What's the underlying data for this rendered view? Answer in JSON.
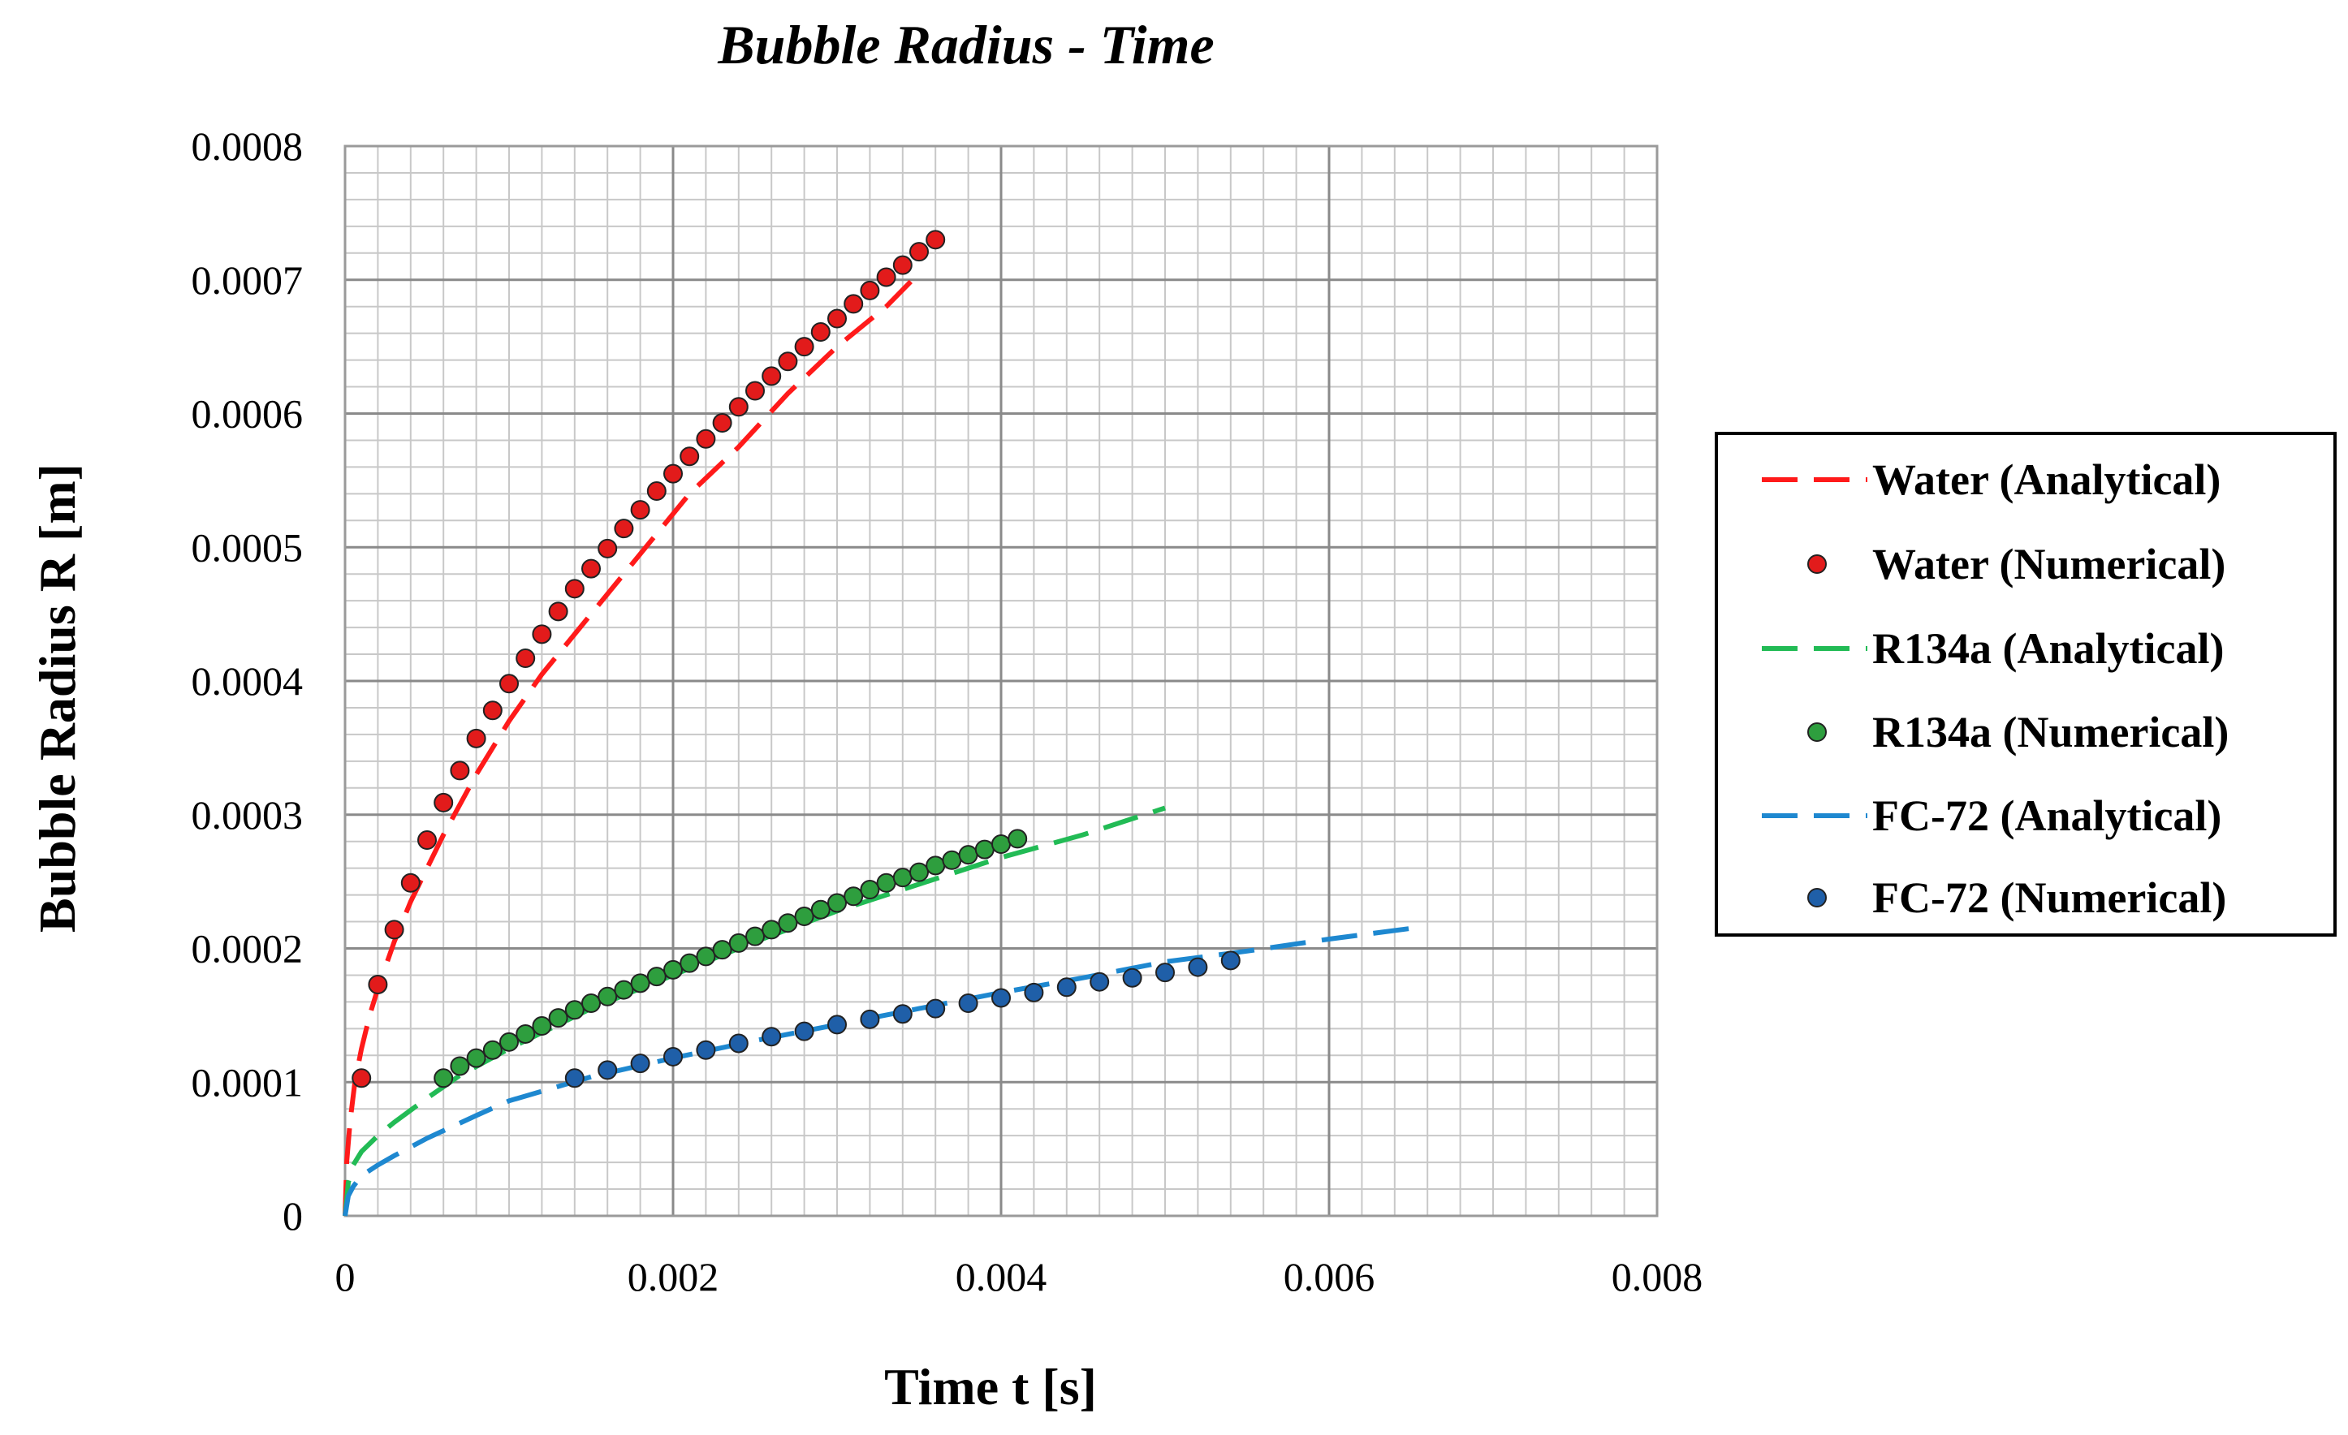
{
  "chart_data": {
    "type": "scatter",
    "title": "Bubble Radius - Time",
    "xlabel": "Time t [s]",
    "ylabel": "Bubble Radius R [m]",
    "xlim": [
      0,
      0.008
    ],
    "ylim": [
      0,
      0.0008
    ],
    "xticks": [
      "0",
      "0.002",
      "0.004",
      "0.006",
      "0.008"
    ],
    "yticks": [
      "0",
      "0.0001",
      "0.0002",
      "0.0003",
      "0.0004",
      "0.0005",
      "0.0006",
      "0.0007",
      "0.0008"
    ],
    "grid": true,
    "legend_position": "right",
    "series": [
      {
        "name": "Water (Analytical)",
        "kind": "line",
        "color": "#ff1a1a",
        "x": [
          0,
          1e-05,
          3e-05,
          6e-05,
          0.0001,
          0.00015,
          0.0002,
          0.0003,
          0.0004,
          0.0006,
          0.0008,
          0.001,
          0.0012,
          0.0015,
          0.0018,
          0.0021,
          0.0024,
          0.0027,
          0.003,
          0.0033,
          0.0035
        ],
        "y": [
          0,
          4e-05,
          7e-05,
          0.0001,
          0.000125,
          0.00015,
          0.00017,
          0.000205,
          0.000235,
          0.000285,
          0.00033,
          0.00037,
          0.000405,
          0.00045,
          0.000495,
          0.00054,
          0.000575,
          0.000615,
          0.00065,
          0.00068,
          0.000705
        ]
      },
      {
        "name": "Water (Numerical)",
        "kind": "marker",
        "color": "#e21b1b",
        "x": [
          0.0001,
          0.0002,
          0.0003,
          0.0004,
          0.0005,
          0.0006,
          0.0007,
          0.0008,
          0.0009,
          0.001,
          0.0011,
          0.0012,
          0.0013,
          0.0014,
          0.0015,
          0.0016,
          0.0017,
          0.0018,
          0.0019,
          0.002,
          0.0021,
          0.0022,
          0.0023,
          0.0024,
          0.0025,
          0.0026,
          0.0027,
          0.0028,
          0.0029,
          0.003,
          0.0031,
          0.0032,
          0.0033,
          0.0034,
          0.0035,
          0.0036
        ],
        "y": [
          0.000103,
          0.000173,
          0.000214,
          0.000249,
          0.000281,
          0.000309,
          0.000333,
          0.000357,
          0.000378,
          0.000398,
          0.000417,
          0.000435,
          0.000452,
          0.000469,
          0.000484,
          0.000499,
          0.000514,
          0.000528,
          0.000542,
          0.000555,
          0.000568,
          0.000581,
          0.000593,
          0.000605,
          0.000617,
          0.000628,
          0.000639,
          0.00065,
          0.000661,
          0.000671,
          0.000682,
          0.000692,
          0.000702,
          0.000711,
          0.000721,
          0.00073
        ]
      },
      {
        "name": "R134a (Analytical)",
        "kind": "line",
        "color": "#22bb55",
        "x": [
          0,
          2e-05,
          5e-05,
          0.0001,
          0.0002,
          0.0003,
          0.0005,
          0.0007,
          0.001,
          0.0015,
          0.002,
          0.0025,
          0.003,
          0.0035,
          0.004,
          0.0045,
          0.005
        ],
        "y": [
          0,
          2.5e-05,
          3.8e-05,
          4.8e-05,
          6e-05,
          7e-05,
          8.8e-05,
          0.000105,
          0.000125,
          0.000155,
          0.00018,
          0.000205,
          0.000228,
          0.000248,
          0.000268,
          0.000285,
          0.000305
        ]
      },
      {
        "name": "R134a (Numerical)",
        "kind": "marker",
        "color": "#2e9e3e",
        "x": [
          0.0006,
          0.0007,
          0.0008,
          0.0009,
          0.001,
          0.0011,
          0.0012,
          0.0013,
          0.0014,
          0.0015,
          0.0016,
          0.0017,
          0.0018,
          0.0019,
          0.002,
          0.0021,
          0.0022,
          0.0023,
          0.0024,
          0.0025,
          0.0026,
          0.0027,
          0.0028,
          0.0029,
          0.003,
          0.0031,
          0.0032,
          0.0033,
          0.0034,
          0.0035,
          0.0036,
          0.0037,
          0.0038,
          0.0039,
          0.004,
          0.0041
        ],
        "y": [
          0.000103,
          0.000112,
          0.000118,
          0.000124,
          0.00013,
          0.000136,
          0.000142,
          0.000148,
          0.000154,
          0.000159,
          0.000164,
          0.000169,
          0.000174,
          0.000179,
          0.000184,
          0.000189,
          0.000194,
          0.000199,
          0.000204,
          0.000209,
          0.000214,
          0.000219,
          0.000224,
          0.000229,
          0.000234,
          0.000239,
          0.000244,
          0.000249,
          0.000253,
          0.000257,
          0.000262,
          0.000266,
          0.00027,
          0.000274,
          0.000278,
          0.000282
        ]
      },
      {
        "name": "FC-72 (Analytical)",
        "kind": "line",
        "color": "#1e88d0",
        "x": [
          0,
          2e-05,
          5e-05,
          0.0001,
          0.0002,
          0.0003,
          0.0005,
          0.0008,
          0.001,
          0.0015,
          0.002,
          0.0025,
          0.003,
          0.0035,
          0.004,
          0.0045,
          0.005,
          0.0055,
          0.006,
          0.0065
        ],
        "y": [
          0,
          1.5e-05,
          2.2e-05,
          3e-05,
          3.8e-05,
          4.5e-05,
          5.8e-05,
          7.5e-05,
          8.6e-05,
          0.000104,
          0.000118,
          0.000131,
          0.000143,
          0.000155,
          0.000167,
          0.000178,
          0.00019,
          0.000198,
          0.000207,
          0.000215
        ]
      },
      {
        "name": "FC-72 (Numerical)",
        "kind": "marker",
        "color": "#1f5fa8",
        "x": [
          0.0014,
          0.0016,
          0.0018,
          0.002,
          0.0022,
          0.0024,
          0.0026,
          0.0028,
          0.003,
          0.0032,
          0.0034,
          0.0036,
          0.0038,
          0.004,
          0.0042,
          0.0044,
          0.0046,
          0.0048,
          0.005,
          0.0052,
          0.0054
        ],
        "y": [
          0.000103,
          0.000109,
          0.000114,
          0.000119,
          0.000124,
          0.000129,
          0.000134,
          0.000138,
          0.000143,
          0.000147,
          0.000151,
          0.000155,
          0.000159,
          0.000163,
          0.000167,
          0.000171,
          0.000175,
          0.000178,
          0.000182,
          0.000186,
          0.000191
        ]
      }
    ]
  }
}
